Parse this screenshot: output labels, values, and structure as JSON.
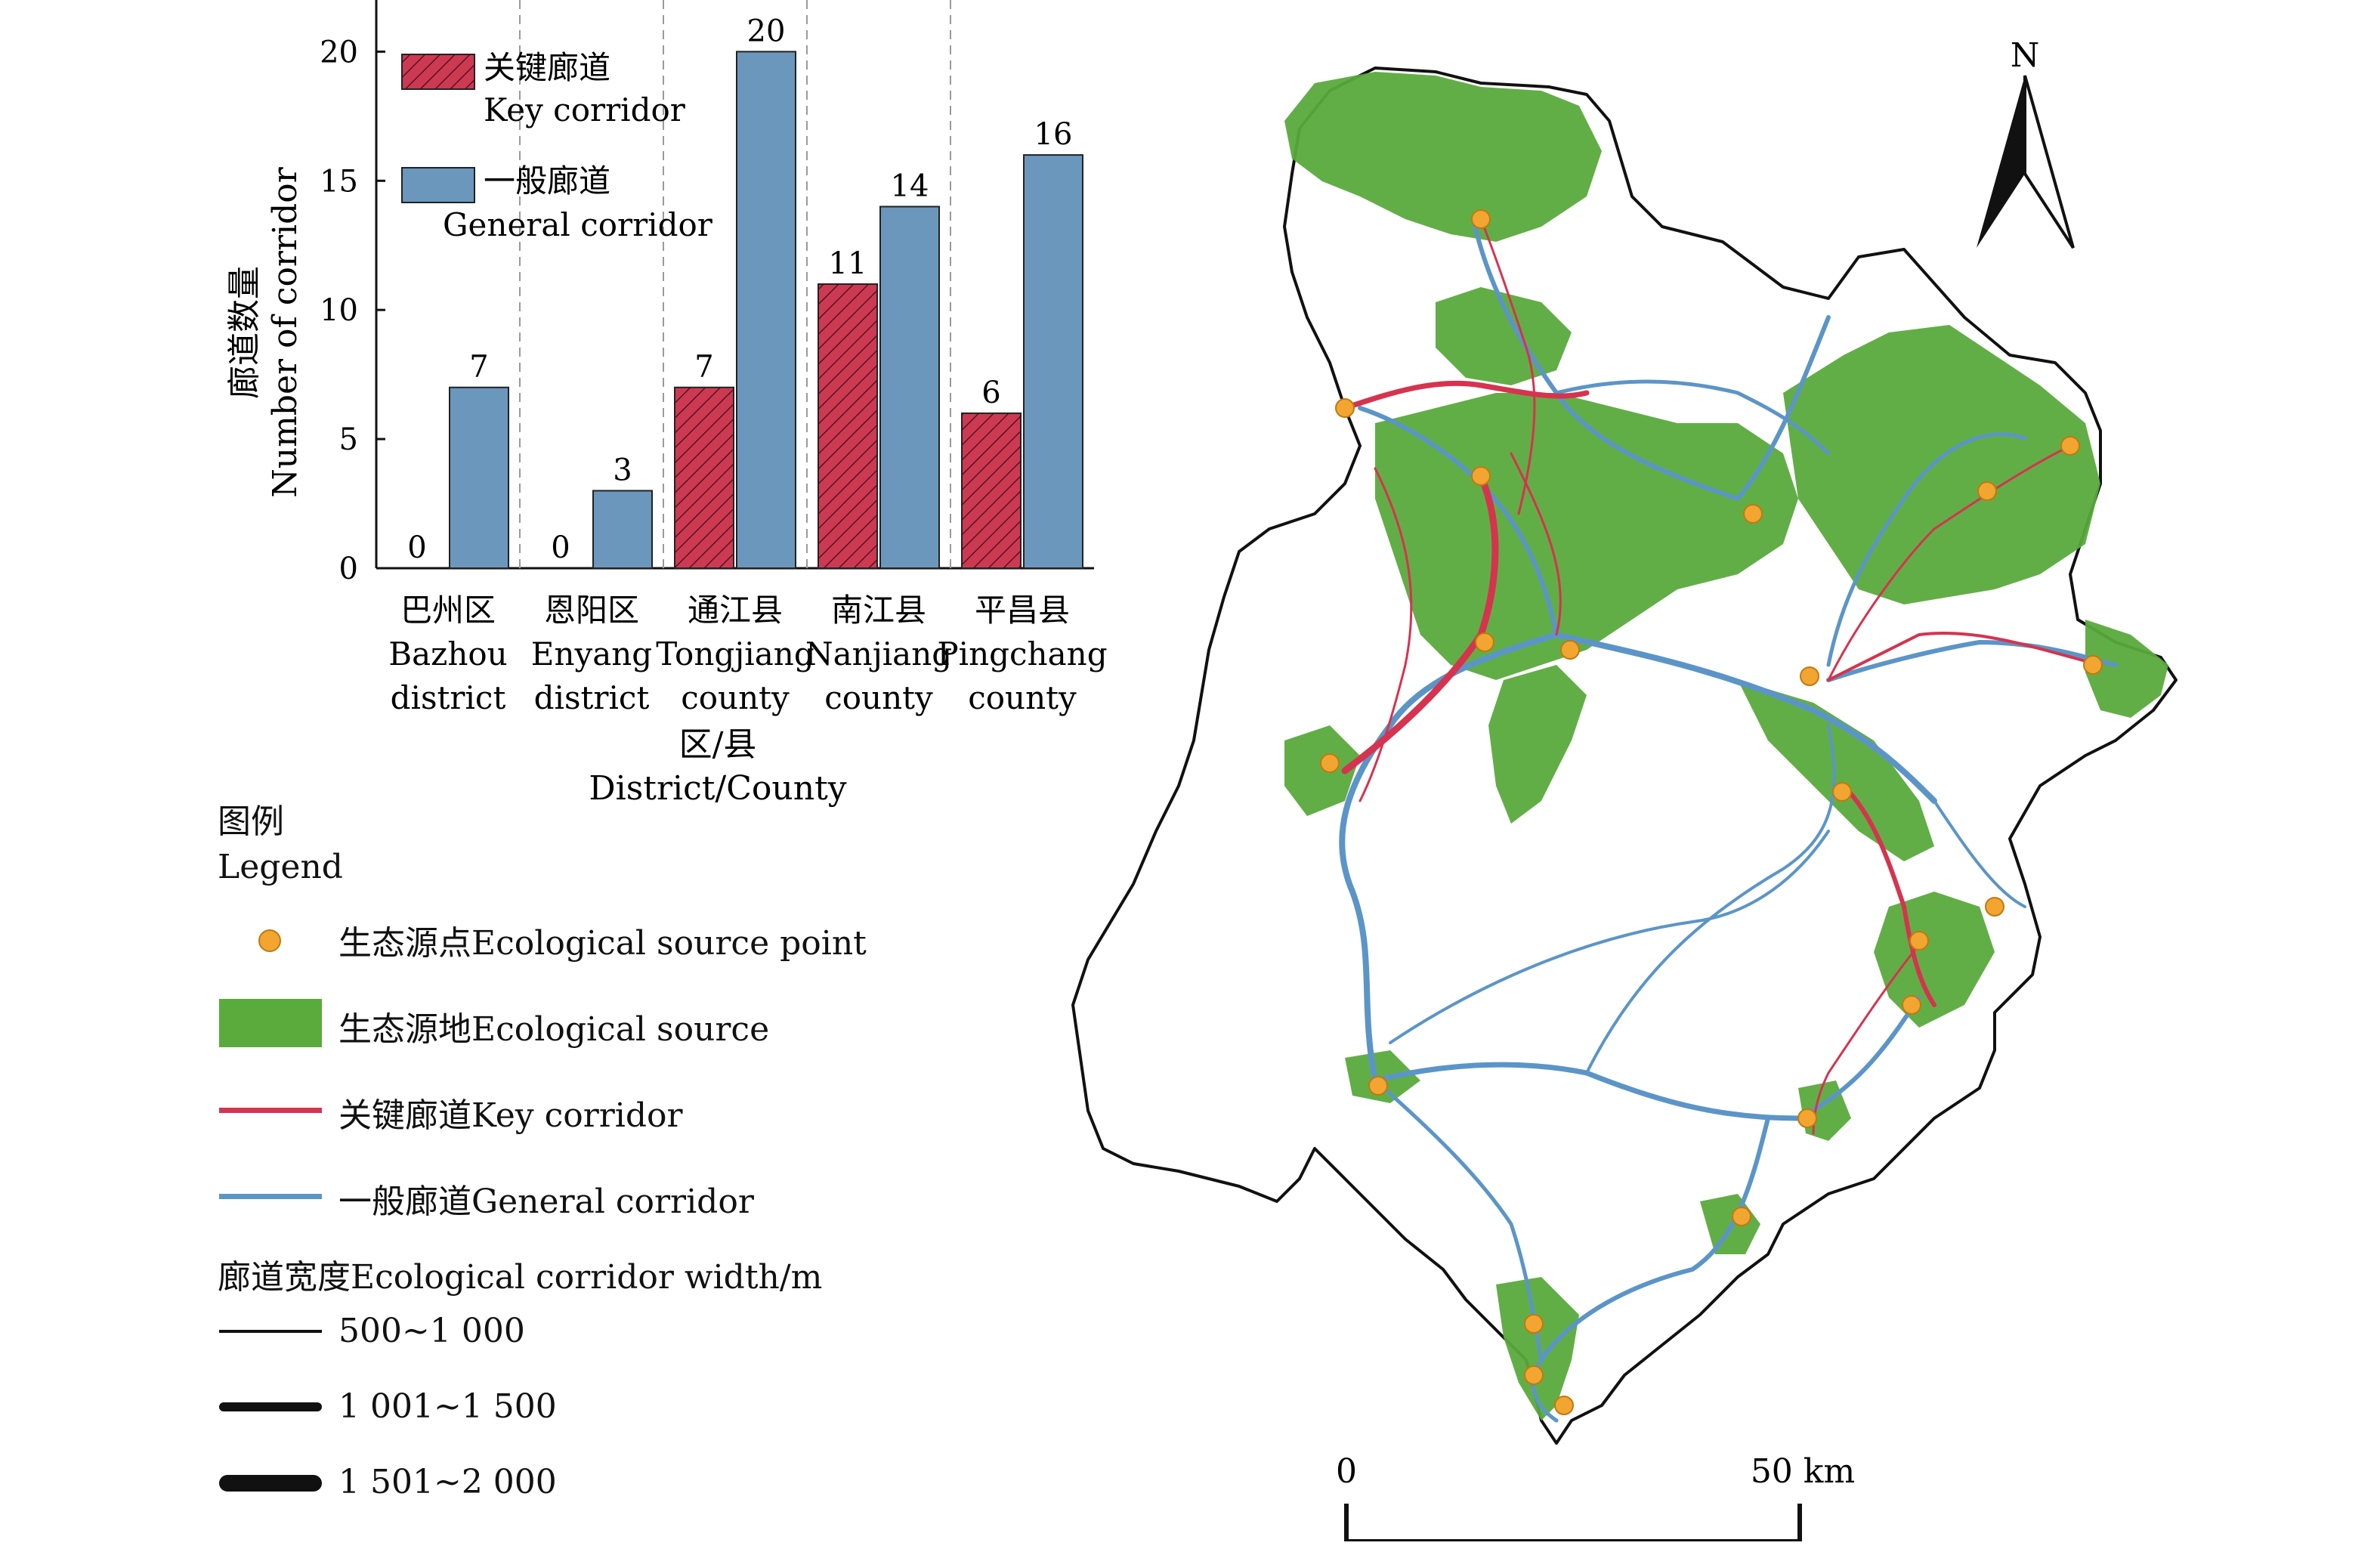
{
  "chart_data": {
    "type": "bar",
    "ylabel_cn": "廊道数量",
    "ylabel_en": "Number of corridor",
    "xlabel_cn": "区/县",
    "xlabel_en": "District/County",
    "ylim": [
      0,
      22
    ],
    "yticks": [
      "0",
      "5",
      "10",
      "15",
      "20"
    ],
    "categories": [
      {
        "cn": "巴州区",
        "en1": "Bazhou",
        "en2": "district"
      },
      {
        "cn": "恩阳区",
        "en1": "Enyang",
        "en2": "district"
      },
      {
        "cn": "通江县",
        "en1": "Tongjiang",
        "en2": "county"
      },
      {
        "cn": "南江县",
        "en1": "Nanjiang",
        "en2": "county"
      },
      {
        "cn": "平昌县",
        "en1": "Pingchang",
        "en2": "county"
      }
    ],
    "series": [
      {
        "name_cn": "关键廊道",
        "name_en": "Key corridor",
        "color": "#cc3a52",
        "values": [
          0,
          0,
          7,
          11,
          6
        ],
        "labels": [
          "0",
          "0",
          "7",
          "11",
          "6"
        ]
      },
      {
        "name_cn": "一般廊道",
        "name_en": "General corridor",
        "color": "#6b97bd",
        "values": [
          7,
          3,
          20,
          14,
          16
        ],
        "labels": [
          "7",
          "3",
          "20",
          "14",
          "16"
        ]
      }
    ],
    "grid": "vertical-dashed-separators",
    "legend_position": "top-left"
  },
  "map_legend": {
    "title_cn": "图例",
    "title_en": "Legend",
    "items": [
      {
        "label": "生态源点Ecological source point",
        "color": "#f2a530"
      },
      {
        "label": "生态源地Ecological source",
        "color": "#5aaa3c"
      },
      {
        "label": "关键廊道Key corridor",
        "color": "#d6334f"
      },
      {
        "label": "一般廊道General corridor",
        "color": "#5b95c8"
      }
    ],
    "width_title": "廊道宽度Ecological corridor width/m",
    "widths": [
      "500~1 000",
      "1 001~1 500",
      "1 501~2 000"
    ]
  },
  "map": {
    "north_label": "N",
    "scale_start": "0",
    "scale_end": "50 km",
    "source_color": "#5aaa3c",
    "key_color": "#d6334f",
    "general_color": "#5b95c8",
    "point_color": "#f2a530"
  }
}
